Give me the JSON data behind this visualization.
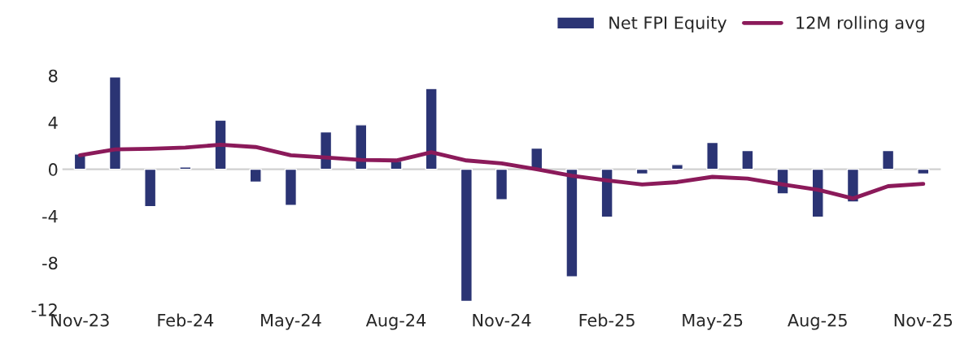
{
  "chart_data": {
    "type": "bar",
    "categories": [
      "Nov-23",
      null,
      null,
      "Feb-24",
      null,
      null,
      "May-24",
      null,
      null,
      "Aug-24",
      null,
      null,
      "Nov-24",
      null,
      null,
      "Feb-25",
      null,
      null,
      "May-25",
      null,
      null,
      "Aug-25",
      null,
      null,
      "Nov-25"
    ],
    "series": [
      {
        "name": "Net FPI Equity",
        "color": "#2b3474",
        "values": [
          1.3,
          7.9,
          -3.2,
          0.2,
          4.2,
          -1.1,
          -3.1,
          3.2,
          3.8,
          0.7,
          6.9,
          -11.3,
          -2.6,
          1.8,
          -9.2,
          -4.1,
          -0.4,
          0.4,
          2.3,
          1.6,
          -2.1,
          -4.1,
          -2.8,
          1.6,
          -0.4
        ]
      },
      {
        "name": "12M rolling avg",
        "type": "line",
        "color": "#8b1a5a",
        "values": [
          1.2,
          1.7,
          1.75,
          1.85,
          2.1,
          1.9,
          1.2,
          1.0,
          0.8,
          0.75,
          1.45,
          0.75,
          0.5,
          0.0,
          -0.55,
          -0.95,
          -1.3,
          -1.1,
          -0.65,
          -0.8,
          -1.3,
          -1.75,
          -2.5,
          -1.45,
          -1.25
        ]
      }
    ],
    "ylim": [
      -12,
      8
    ],
    "yticks": [
      -12,
      -8,
      -4,
      0,
      4,
      8
    ],
    "ref_lines": [
      {
        "axis": "y",
        "value": 0,
        "color": "#d0d0d0"
      }
    ],
    "legend": "top right",
    "grid": false
  }
}
